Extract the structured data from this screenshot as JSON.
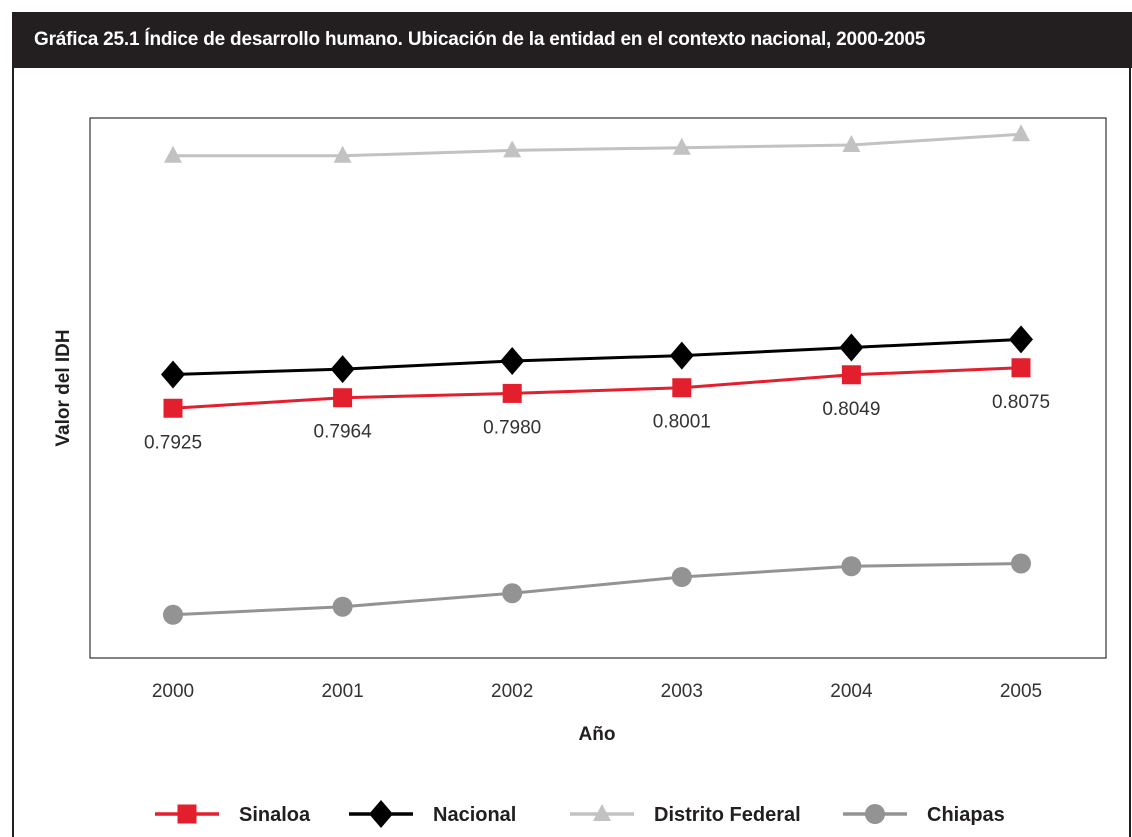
{
  "header": {
    "title": "Gráfica 25.1  Índice de desarrollo humano. Ubicación de la entidad en el contexto nacional, 2000-2005"
  },
  "chart_data": {
    "type": "line",
    "title": "Gráfica 25.1  Índice de desarrollo humano. Ubicación de la entidad en el contexto nacional, 2000-2005",
    "xlabel": "Año",
    "ylabel": "Valor del IDH",
    "categories": [
      "2000",
      "2001",
      "2002",
      "2003",
      "2004",
      "2005"
    ],
    "ylim": [
      0.7,
      0.9
    ],
    "grid": false,
    "legend_position": "bottom",
    "series": [
      {
        "name": "Sinaloa",
        "color": "#e31e2d",
        "marker": "square",
        "values": [
          0.7925,
          0.7964,
          0.798,
          0.8001,
          0.8049,
          0.8075
        ],
        "labels": [
          "0.7925",
          "0.7964",
          "0.7980",
          "0.8001",
          "0.8049",
          "0.8075"
        ]
      },
      {
        "name": "Nacional",
        "color": "#000000",
        "marker": "diamond",
        "values": [
          0.805,
          0.807,
          0.81,
          0.812,
          0.815,
          0.818
        ]
      },
      {
        "name": "Distrito Federal",
        "color": "#c2c2c2",
        "marker": "triangle",
        "values": [
          0.886,
          0.886,
          0.888,
          0.889,
          0.89,
          0.894
        ]
      },
      {
        "name": "Chiapas",
        "color": "#939393",
        "marker": "circle",
        "values": [
          0.716,
          0.719,
          0.724,
          0.73,
          0.734,
          0.735
        ]
      }
    ]
  }
}
